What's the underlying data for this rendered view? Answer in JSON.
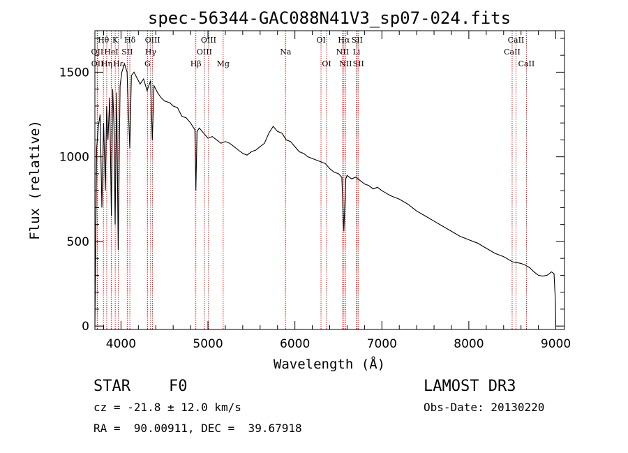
{
  "chart_data": {
    "type": "line",
    "title": "spec-56344-GAC088N41V3_sp07-024.fits",
    "xlabel": "Wavelength (Å)",
    "ylabel": "Flux (relative)",
    "xlim": [
      3700,
      9100
    ],
    "ylim": [
      -20,
      1745
    ],
    "xticks": [
      4000,
      5000,
      6000,
      7000,
      8000,
      9000
    ],
    "xtick_labels": [
      "4000",
      "5000",
      "6000",
      "7000",
      "8000",
      "9000"
    ],
    "yticks": [
      0,
      500,
      1000,
      1500
    ],
    "ytick_labels": [
      "0",
      "500",
      "1000",
      "1500"
    ],
    "series": [
      {
        "name": "spectrum",
        "x": [
          3700,
          3720,
          3740,
          3760,
          3780,
          3800,
          3820,
          3835,
          3850,
          3870,
          3889,
          3905,
          3920,
          3933,
          3950,
          3968,
          3990,
          4010,
          4040,
          4070,
          4101,
          4120,
          4150,
          4180,
          4220,
          4260,
          4300,
          4340,
          4360,
          4380,
          4420,
          4460,
          4500,
          4560,
          4600,
          4650,
          4700,
          4750,
          4800,
          4850,
          4861,
          4875,
          4900,
          4950,
          5000,
          5050,
          5100,
          5150,
          5200,
          5250,
          5300,
          5350,
          5400,
          5450,
          5500,
          5550,
          5600,
          5650,
          5700,
          5750,
          5800,
          5850,
          5900,
          5950,
          6000,
          6050,
          6100,
          6150,
          6200,
          6250,
          6300,
          6350,
          6400,
          6450,
          6500,
          6540,
          6563,
          6585,
          6600,
          6650,
          6700,
          6750,
          6800,
          6850,
          6900,
          6950,
          7000,
          7100,
          7200,
          7300,
          7400,
          7500,
          7600,
          7700,
          7800,
          7900,
          8000,
          8100,
          8200,
          8300,
          8400,
          8500,
          8600,
          8650,
          8700,
          8750,
          8800,
          8850,
          8900,
          8950,
          8980,
          8995,
          9000
        ],
        "y": [
          0,
          1050,
          1180,
          1250,
          700,
          1200,
          800,
          1300,
          1100,
          1350,
          650,
          1400,
          1180,
          600,
          1380,
          450,
          1420,
          1500,
          1550,
          1500,
          1050,
          1480,
          1500,
          1470,
          1430,
          1460,
          1390,
          1450,
          1100,
          1420,
          1380,
          1350,
          1330,
          1320,
          1300,
          1290,
          1240,
          1230,
          1200,
          1160,
          800,
          1150,
          1170,
          1140,
          1110,
          1120,
          1100,
          1080,
          1090,
          1080,
          1060,
          1040,
          1020,
          1010,
          1030,
          1040,
          1060,
          1080,
          1140,
          1180,
          1150,
          1140,
          1100,
          1090,
          1060,
          1030,
          1020,
          1000,
          990,
          980,
          970,
          960,
          930,
          910,
          900,
          880,
          560,
          870,
          890,
          870,
          880,
          860,
          840,
          830,
          810,
          820,
          800,
          770,
          750,
          720,
          680,
          650,
          620,
          590,
          560,
          530,
          510,
          490,
          460,
          430,
          410,
          380,
          370,
          360,
          345,
          320,
          300,
          295,
          300,
          320,
          310,
          150,
          0
        ]
      }
    ],
    "lines": [
      {
        "name": "Hθ",
        "x": 3798,
        "row": 1
      },
      {
        "name": "OII",
        "x": 3727,
        "row": 2
      },
      {
        "name": "OII",
        "x": 3729,
        "row": 3
      },
      {
        "name": "Hη",
        "x": 3836,
        "row": 3
      },
      {
        "name": "HeI",
        "x": 3889,
        "row": 2
      },
      {
        "name": "K",
        "x": 3934,
        "row": 1
      },
      {
        "name": "Hε",
        "x": 3970,
        "row": 3
      },
      {
        "name": "SII",
        "x": 4072,
        "row": 2
      },
      {
        "name": "Hδ",
        "x": 4102,
        "row": 1
      },
      {
        "name": "G",
        "x": 4305,
        "row": 3
      },
      {
        "name": "Hγ",
        "x": 4341,
        "row": 2
      },
      {
        "name": "OIII",
        "x": 4363,
        "row": 1
      },
      {
        "name": "Hβ",
        "x": 4861,
        "row": 3
      },
      {
        "name": "OIII",
        "x": 4959,
        "row": 2
      },
      {
        "name": "OIII",
        "x": 5007,
        "row": 1
      },
      {
        "name": "Mg",
        "x": 5175,
        "row": 3
      },
      {
        "name": "Na",
        "x": 5893,
        "row": 2
      },
      {
        "name": "OI",
        "x": 6300,
        "row": 1
      },
      {
        "name": "OI",
        "x": 6364,
        "row": 3
      },
      {
        "name": "NII",
        "x": 6548,
        "row": 2
      },
      {
        "name": "NII",
        "x": 6583,
        "row": 3
      },
      {
        "name": "Hα",
        "x": 6563,
        "row": 1
      },
      {
        "name": "Li",
        "x": 6708,
        "row": 2
      },
      {
        "name": "SII",
        "x": 6716,
        "row": 1
      },
      {
        "name": "SII",
        "x": 6731,
        "row": 3
      },
      {
        "name": "CaII",
        "x": 8498,
        "row": 2
      },
      {
        "name": "CaII",
        "x": 8542,
        "row": 1
      },
      {
        "name": "CaII",
        "x": 8662,
        "row": 3
      }
    ]
  },
  "info": {
    "object_class": "STAR",
    "subclass": "F0",
    "cz": "cz = -21.8 ± 12.0 km/s",
    "radec": "RA =  90.00911, DEC =  39.67918",
    "survey": "LAMOST DR3",
    "obs_date": "Obs-Date: 20130220"
  },
  "colors": {
    "line_marker": "#cc0000",
    "spectrum": "#000000",
    "axes": "#000000"
  }
}
